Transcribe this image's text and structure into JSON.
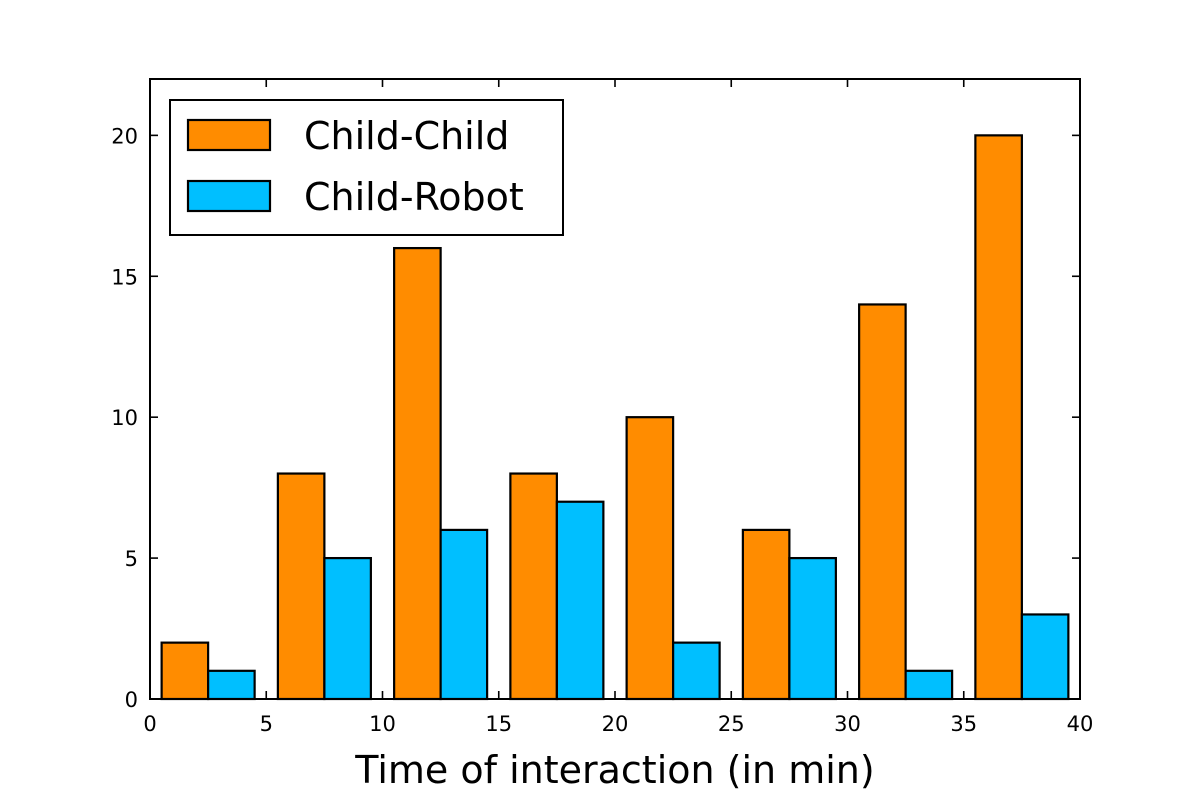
{
  "chart_data": {
    "type": "bar",
    "title": "",
    "xlabel": "Time of interaction (in min)",
    "ylabel": "",
    "xlim": [
      0,
      40
    ],
    "ylim": [
      0,
      22
    ],
    "xticks": [
      "0",
      "5",
      "10",
      "15",
      "20",
      "25",
      "30",
      "35",
      "40"
    ],
    "yticks": [
      "0",
      "5",
      "10",
      "15",
      "20"
    ],
    "bin_edges": [
      0,
      5,
      10,
      15,
      20,
      25,
      30,
      35,
      40
    ],
    "grid": false,
    "legend_position": "top-left",
    "series": [
      {
        "name": "Child-Child",
        "color": "#ff8c00",
        "values": [
          2,
          8,
          16,
          8,
          10,
          6,
          14,
          20
        ]
      },
      {
        "name": "Child-Robot",
        "color": "#00bfff",
        "values": [
          1,
          5,
          6,
          7,
          2,
          5,
          1,
          3
        ]
      }
    ]
  }
}
